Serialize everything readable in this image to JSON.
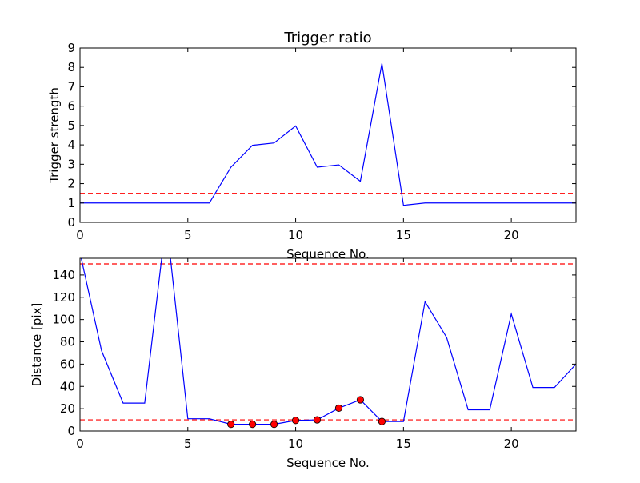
{
  "chart_data": [
    {
      "type": "line",
      "title": "Trigger ratio",
      "xlabel": "Sequence No.",
      "ylabel": "Trigger strength",
      "xlim": [
        0,
        23
      ],
      "ylim": [
        0,
        9
      ],
      "xticks": [
        "0",
        "5",
        "10",
        "15",
        "20"
      ],
      "yticks": [
        "0",
        "1",
        "2",
        "3",
        "4",
        "5",
        "6",
        "7",
        "8",
        "9"
      ],
      "series": [
        {
          "color": "#0000ff",
          "x": [
            0,
            1,
            2,
            3,
            4,
            5,
            6,
            7,
            8,
            9,
            10,
            11,
            12,
            13,
            14,
            15,
            16,
            17,
            18,
            19,
            20,
            21,
            22,
            23
          ],
          "y": [
            1,
            1,
            1,
            1,
            1,
            1,
            1,
            2.85,
            3.98,
            4.1,
            4.98,
            2.85,
            2.97,
            2.12,
            8.2,
            0.88,
            1,
            1,
            1,
            1,
            1,
            1,
            1,
            1
          ]
        }
      ],
      "thresholds": [
        {
          "y": 1.5,
          "color": "#ff0000",
          "style": "dashed"
        }
      ]
    },
    {
      "type": "line",
      "xlabel": "Sequence No.",
      "ylabel": "Distance [pix]",
      "xlim": [
        0,
        23
      ],
      "ylim": [
        0,
        155
      ],
      "xticks": [
        "0",
        "5",
        "10",
        "15",
        "20"
      ],
      "yticks": [
        "0",
        "20",
        "40",
        "60",
        "80",
        "100",
        "120",
        "140"
      ],
      "series": [
        {
          "color": "#0000ff",
          "x": [
            0,
            1,
            2,
            3,
            4,
            5,
            6,
            7,
            8,
            9,
            10,
            11,
            12,
            13,
            14,
            15,
            16,
            17,
            18,
            19,
            20,
            21,
            22,
            23
          ],
          "y": [
            160,
            72,
            25,
            25,
            190,
            11,
            11,
            6,
            6,
            6,
            9.5,
            10,
            20.5,
            28,
            8.5,
            8.5,
            116,
            84,
            19,
            19,
            105,
            39,
            39,
            60
          ]
        }
      ],
      "markers": {
        "color": "#ff0000",
        "x": [
          7,
          8,
          9,
          10,
          11,
          12,
          13,
          14
        ],
        "y": [
          6,
          6,
          6,
          9.5,
          10,
          20.5,
          28,
          8.5
        ]
      },
      "thresholds": [
        {
          "y": 150,
          "color": "#ff0000",
          "style": "dashed"
        },
        {
          "y": 10,
          "color": "#ff0000",
          "style": "dashed"
        }
      ]
    }
  ]
}
